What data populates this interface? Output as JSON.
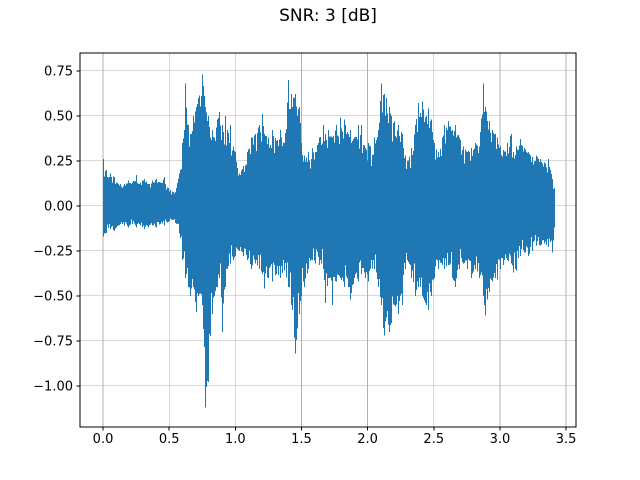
{
  "chart_data": {
    "type": "line",
    "subtype": "audio-waveform",
    "title": "SNR: 3 [dB]",
    "xlabel": "",
    "ylabel": "",
    "grid": true,
    "legend": false,
    "line_color": "#1f77b4",
    "grid_color": "#b0b0b0",
    "spine_color": "#000000",
    "background_color": "#ffffff",
    "xlim": [
      -0.174,
      3.575
    ],
    "ylim": [
      -1.229,
      0.849
    ],
    "x_ticks": [
      0.0,
      0.5,
      1.0,
      1.5,
      2.0,
      2.5,
      3.0,
      3.5
    ],
    "x_tick_labels": [
      "0.0",
      "0.5",
      "1.0",
      "1.5",
      "2.0",
      "2.5",
      "3.0",
      "3.5"
    ],
    "y_ticks": [
      0.75,
      0.5,
      0.25,
      0.0,
      -0.25,
      -0.5,
      -0.75,
      -1.0
    ],
    "y_tick_labels": [
      "0.75",
      "0.50",
      "0.25",
      "0.00",
      "−0.25",
      "−0.50",
      "−0.75",
      "−1.00"
    ],
    "signal_extent": {
      "t_start": 0.0,
      "t_end": 3.41,
      "max": 0.73,
      "min": -1.12
    },
    "envelope": {
      "description": "upper/lower amplitude envelope keypoints of plotted waveform",
      "t": [
        0.0,
        0.02,
        0.05,
        0.08,
        0.1,
        0.13,
        0.16,
        0.19,
        0.22,
        0.25,
        0.28,
        0.31,
        0.34,
        0.37,
        0.4,
        0.43,
        0.46,
        0.49,
        0.52,
        0.55,
        0.58,
        0.6,
        0.62,
        0.64,
        0.66,
        0.68,
        0.7,
        0.72,
        0.75,
        0.77,
        0.79,
        0.82,
        0.84,
        0.86,
        0.88,
        0.9,
        0.92,
        0.94,
        0.96,
        0.98,
        1.0,
        1.03,
        1.06,
        1.09,
        1.12,
        1.15,
        1.18,
        1.2,
        1.22,
        1.25,
        1.28,
        1.31,
        1.34,
        1.37,
        1.4,
        1.42,
        1.45,
        1.48,
        1.5,
        1.52,
        1.55,
        1.58,
        1.6,
        1.63,
        1.66,
        1.68,
        1.7,
        1.73,
        1.76,
        1.79,
        1.82,
        1.85,
        1.87,
        1.9,
        1.93,
        1.95,
        1.98,
        2.0,
        2.02,
        2.05,
        2.08,
        2.1,
        2.12,
        2.14,
        2.16,
        2.18,
        2.2,
        2.23,
        2.26,
        2.28,
        2.3,
        2.33,
        2.36,
        2.38,
        2.41,
        2.44,
        2.46,
        2.48,
        2.5,
        2.53,
        2.56,
        2.58,
        2.61,
        2.64,
        2.66,
        2.69,
        2.72,
        2.75,
        2.78,
        2.81,
        2.84,
        2.87,
        2.89,
        2.92,
        2.94,
        2.96,
        2.98,
        3.0,
        3.02,
        3.05,
        3.08,
        3.1,
        3.12,
        3.15,
        3.18,
        3.21,
        3.24,
        3.27,
        3.3,
        3.33,
        3.36,
        3.38,
        3.395,
        3.41
      ],
      "upper": [
        0.26,
        0.2,
        0.18,
        0.16,
        0.13,
        0.12,
        0.12,
        0.14,
        0.13,
        0.17,
        0.13,
        0.15,
        0.12,
        0.14,
        0.15,
        0.13,
        0.16,
        0.1,
        0.08,
        0.1,
        0.2,
        0.35,
        0.68,
        0.45,
        0.4,
        0.5,
        0.55,
        0.6,
        0.73,
        0.55,
        0.5,
        0.42,
        0.38,
        0.48,
        0.52,
        0.45,
        0.5,
        0.42,
        0.45,
        0.33,
        0.3,
        0.18,
        0.22,
        0.3,
        0.38,
        0.4,
        0.45,
        0.51,
        0.4,
        0.38,
        0.42,
        0.36,
        0.42,
        0.35,
        0.7,
        0.62,
        0.62,
        0.55,
        0.35,
        0.28,
        0.3,
        0.32,
        0.3,
        0.38,
        0.45,
        0.4,
        0.42,
        0.38,
        0.45,
        0.49,
        0.48,
        0.4,
        0.42,
        0.38,
        0.45,
        0.45,
        0.32,
        0.35,
        0.33,
        0.38,
        0.42,
        0.68,
        0.62,
        0.6,
        0.55,
        0.5,
        0.47,
        0.45,
        0.4,
        0.28,
        0.25,
        0.32,
        0.45,
        0.57,
        0.58,
        0.5,
        0.54,
        0.48,
        0.35,
        0.3,
        0.38,
        0.45,
        0.47,
        0.42,
        0.45,
        0.38,
        0.33,
        0.3,
        0.32,
        0.35,
        0.33,
        0.68,
        0.55,
        0.47,
        0.42,
        0.4,
        0.38,
        0.33,
        0.31,
        0.35,
        0.4,
        0.3,
        0.33,
        0.37,
        0.32,
        0.3,
        0.27,
        0.28,
        0.26,
        0.24,
        0.26,
        0.2,
        0.15,
        0.1
      ],
      "lower": [
        -0.17,
        -0.15,
        -0.13,
        -0.14,
        -0.12,
        -0.1,
        -0.11,
        -0.12,
        -0.1,
        -0.12,
        -0.11,
        -0.13,
        -0.12,
        -0.11,
        -0.12,
        -0.1,
        -0.11,
        -0.09,
        -0.08,
        -0.1,
        -0.18,
        -0.3,
        -0.4,
        -0.45,
        -0.5,
        -0.45,
        -0.59,
        -0.5,
        -0.55,
        -1.12,
        -0.98,
        -0.6,
        -0.5,
        -0.45,
        -0.4,
        -0.7,
        -0.45,
        -0.35,
        -0.32,
        -0.3,
        -0.28,
        -0.25,
        -0.28,
        -0.3,
        -0.35,
        -0.32,
        -0.35,
        -0.38,
        -0.46,
        -0.4,
        -0.42,
        -0.38,
        -0.4,
        -0.36,
        -0.45,
        -0.55,
        -0.82,
        -0.6,
        -0.5,
        -0.45,
        -0.35,
        -0.3,
        -0.32,
        -0.33,
        -0.35,
        -0.54,
        -0.4,
        -0.55,
        -0.42,
        -0.4,
        -0.45,
        -0.45,
        -0.52,
        -0.4,
        -0.42,
        -0.38,
        -0.4,
        -0.42,
        -0.35,
        -0.35,
        -0.45,
        -0.55,
        -0.72,
        -0.62,
        -0.7,
        -0.65,
        -0.55,
        -0.6,
        -0.55,
        -0.35,
        -0.3,
        -0.4,
        -0.5,
        -0.45,
        -0.5,
        -0.55,
        -0.58,
        -0.5,
        -0.4,
        -0.35,
        -0.33,
        -0.35,
        -0.33,
        -0.4,
        -0.45,
        -0.35,
        -0.32,
        -0.35,
        -0.4,
        -0.35,
        -0.4,
        -0.5,
        -0.61,
        -0.48,
        -0.42,
        -0.4,
        -0.41,
        -0.35,
        -0.33,
        -0.3,
        -0.32,
        -0.37,
        -0.36,
        -0.28,
        -0.26,
        -0.28,
        -0.25,
        -0.22,
        -0.22,
        -0.21,
        -0.23,
        -0.2,
        -0.26,
        -0.12
      ]
    }
  }
}
